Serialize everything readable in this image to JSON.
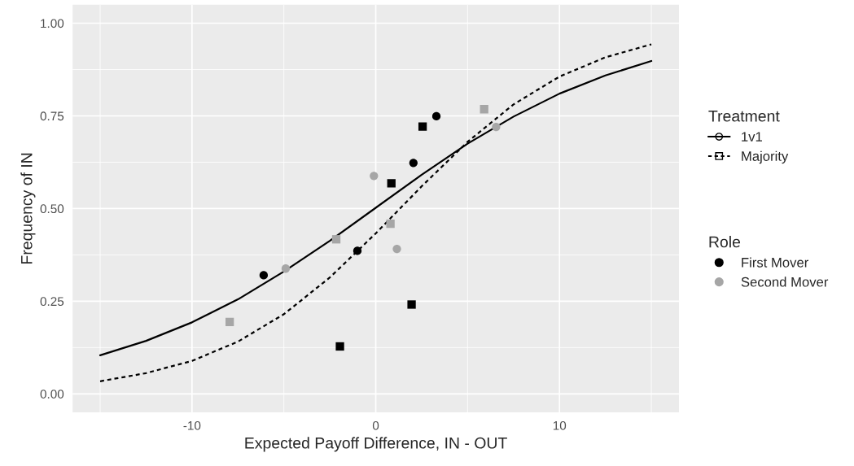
{
  "chart_data": {
    "type": "scatter",
    "xlabel": "Expected Payoff Difference, IN - OUT",
    "ylabel": "Frequency of IN",
    "xlim": [
      -16.5,
      16.5
    ],
    "xticks": [
      -10,
      0,
      10
    ],
    "ylim": [
      -0.05,
      1.05
    ],
    "yticks": [
      {
        "value": 0,
        "label": "0.00"
      },
      {
        "value": 0.25,
        "label": "0.25"
      },
      {
        "value": 0.5,
        "label": "0.50"
      },
      {
        "value": 0.75,
        "label": "0.75"
      },
      {
        "value": 1,
        "label": "1.00"
      }
    ],
    "grid": true,
    "legend": "right",
    "legend_title": [
      "Treatment",
      "Role"
    ],
    "series": [
      {
        "name": "1v1",
        "type": "line",
        "line_style": "solid",
        "color": "#000000",
        "x": [
          -15,
          -12.5,
          -10,
          -7.5,
          -5,
          -2.5,
          0,
          2.5,
          5,
          7.5,
          10,
          12.5,
          15
        ],
        "values": [
          0.104,
          0.143,
          0.193,
          0.255,
          0.33,
          0.413,
          0.502,
          0.591,
          0.675,
          0.748,
          0.81,
          0.859,
          0.898
        ]
      },
      {
        "name": "Majority",
        "type": "line",
        "line_style": "dashed",
        "color": "#000000",
        "x": [
          -15,
          -12.5,
          -10,
          -7.5,
          -5,
          -2.5,
          0,
          2.5,
          5,
          7.5,
          10,
          12.5,
          15
        ],
        "values": [
          0.034,
          0.056,
          0.089,
          0.141,
          0.215,
          0.314,
          0.433,
          0.56,
          0.68,
          0.781,
          0.856,
          0.908,
          0.943
        ]
      },
      {
        "name": "First Mover",
        "marker": "circle",
        "color": "#000000",
        "x": [
          -6.1,
          -1.0,
          2.05,
          3.3
        ],
        "values": [
          0.32,
          0.386,
          0.623,
          0.749
        ]
      },
      {
        "marker": "square",
        "color": "#000000",
        "x": [
          -1.95,
          0.85,
          1.95,
          2.55
        ],
        "values": [
          0.128,
          0.568,
          0.241,
          0.721
        ]
      },
      {
        "name": "Second Mover",
        "marker": "circle",
        "color": "#a6a6a6",
        "x": [
          -4.9,
          -0.1,
          1.15,
          6.55
        ],
        "values": [
          0.338,
          0.588,
          0.391,
          0.72
        ]
      },
      {
        "marker": "square",
        "color": "#a6a6a6",
        "x": [
          -7.95,
          -2.15,
          0.8,
          5.9
        ],
        "values": [
          0.194,
          0.417,
          0.459,
          0.768
        ]
      }
    ]
  }
}
